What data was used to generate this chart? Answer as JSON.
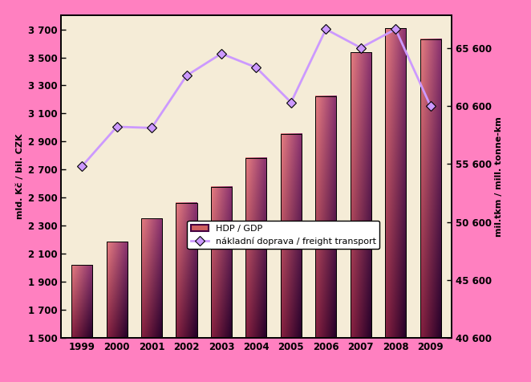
{
  "years": [
    1999,
    2000,
    2001,
    2002,
    2003,
    2004,
    2005,
    2006,
    2007,
    2008,
    2009
  ],
  "gdp_values": [
    2020,
    2185,
    2352,
    2464,
    2577,
    2782,
    2953,
    3222,
    3535,
    3706,
    3629
  ],
  "freight_values": [
    55400,
    58800,
    58700,
    63200,
    65100,
    63900,
    60900,
    67200,
    65600,
    67200,
    60600
  ],
  "bar_color_top_left": "#e88080",
  "bar_color_top_right": "#883060",
  "bar_color_bottom_left": "#cc6666",
  "bar_color_bottom_right": "#330033",
  "line_color": "#cc99ff",
  "background_color": "#f5ecd7",
  "outer_bg": "#ff80c0",
  "ylabel_left": "mld. Kč / bil. CZK",
  "ylabel_right": "mil.tkm / mill. tonne-km",
  "ylim_left": [
    1500,
    3800
  ],
  "ylim_right": [
    40600,
    68400
  ],
  "yticks_left": [
    1500,
    1700,
    1900,
    2100,
    2300,
    2500,
    2700,
    2900,
    3100,
    3300,
    3500,
    3700
  ],
  "yticks_right": [
    40600,
    45600,
    50600,
    55600,
    60600,
    65600
  ],
  "ytick_labels_left": [
    "1 500",
    "1 700",
    "1 900",
    "2 100",
    "2 300",
    "2 500",
    "2 700",
    "2 900",
    "3 100",
    "3 300",
    "3 500",
    "3 700"
  ],
  "ytick_labels_right": [
    "40 600",
    "45 600",
    "50 600",
    "55 600",
    "60 600",
    "65 600"
  ],
  "legend_gdp": "HDP / GDP",
  "legend_freight": "nákladní doprava / freight transport"
}
